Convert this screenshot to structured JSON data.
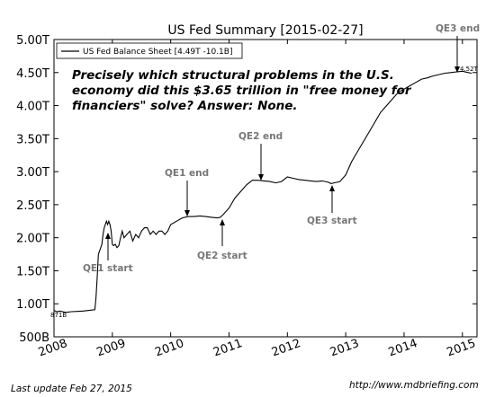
{
  "chart_data": {
    "type": "line",
    "title": "US Fed Summary  [2015-02-27]",
    "xlabel": "",
    "ylabel": "",
    "xlim": [
      2008.0,
      2015.25
    ],
    "ylim": [
      500,
      5000
    ],
    "y_ticks": [
      500,
      1000,
      1500,
      2000,
      2500,
      3000,
      3500,
      4000,
      4500,
      5000
    ],
    "y_tick_labels": [
      "500B",
      "1.00T",
      "1.50T",
      "2.00T",
      "2.50T",
      "3.00T",
      "3.50T",
      "4.00T",
      "4.50T",
      "5.00T"
    ],
    "x_ticks": [
      2008,
      2009,
      2010,
      2011,
      2012,
      2013,
      2014,
      2015
    ],
    "x_tick_labels": [
      "2008",
      "2009",
      "2010",
      "2011",
      "2012",
      "2013",
      "2014",
      "2015"
    ],
    "legend_position": "top-left",
    "series": [
      {
        "name": "US Fed Balance Sheet [4.49T -10.1B]",
        "color": "#000000",
        "x": [
          2008.0,
          2008.05,
          2008.1,
          2008.2,
          2008.3,
          2008.4,
          2008.5,
          2008.6,
          2008.7,
          2008.72,
          2008.74,
          2008.76,
          2008.78,
          2008.8,
          2008.82,
          2008.84,
          2008.86,
          2008.88,
          2008.9,
          2008.92,
          2008.94,
          2008.96,
          2008.98,
          2009.0,
          2009.02,
          2009.05,
          2009.08,
          2009.11,
          2009.14,
          2009.17,
          2009.2,
          2009.25,
          2009.3,
          2009.35,
          2009.4,
          2009.45,
          2009.5,
          2009.55,
          2009.6,
          2009.65,
          2009.7,
          2009.75,
          2009.8,
          2009.85,
          2009.9,
          2009.95,
          2010.0,
          2010.1,
          2010.2,
          2010.3,
          2010.4,
          2010.5,
          2010.6,
          2010.7,
          2010.8,
          2010.85,
          2010.9,
          2011.0,
          2011.1,
          2011.2,
          2011.3,
          2011.4,
          2011.5,
          2011.6,
          2011.7,
          2011.8,
          2011.9,
          2012.0,
          2012.1,
          2012.2,
          2012.3,
          2012.4,
          2012.5,
          2012.6,
          2012.7,
          2012.75,
          2012.8,
          2012.9,
          2013.0,
          2013.1,
          2013.2,
          2013.3,
          2013.4,
          2013.5,
          2013.6,
          2013.7,
          2013.8,
          2013.9,
          2014.0,
          2014.1,
          2014.2,
          2014.3,
          2014.4,
          2014.5,
          2014.6,
          2014.7,
          2014.8,
          2014.9,
          2015.0,
          2015.1,
          2015.16
        ],
        "values": [
          900,
          880,
          890,
          870,
          880,
          885,
          890,
          900,
          910,
          1100,
          1400,
          1750,
          1800,
          1850,
          1900,
          2050,
          2150,
          2200,
          2250,
          2200,
          2250,
          2200,
          2100,
          1900,
          1880,
          1900,
          1850,
          1880,
          2000,
          2100,
          2000,
          2050,
          2100,
          1950,
          2050,
          2000,
          2100,
          2150,
          2150,
          2050,
          2100,
          2050,
          2100,
          2100,
          2050,
          2100,
          2200,
          2250,
          2300,
          2320,
          2320,
          2330,
          2320,
          2310,
          2300,
          2310,
          2350,
          2450,
          2600,
          2700,
          2800,
          2870,
          2870,
          2860,
          2850,
          2830,
          2850,
          2920,
          2900,
          2880,
          2870,
          2860,
          2850,
          2860,
          2840,
          2820,
          2830,
          2850,
          2950,
          3150,
          3300,
          3450,
          3600,
          3750,
          3900,
          4000,
          4100,
          4200,
          4250,
          4300,
          4350,
          4400,
          4420,
          4450,
          4470,
          4490,
          4500,
          4510,
          4520,
          4500,
          4490
        ]
      }
    ],
    "annotations": [
      {
        "text": "QE1 start",
        "x": 2008.92,
        "y": 2050
      },
      {
        "text": "QE1 end",
        "x": 2010.25,
        "y": 2300
      },
      {
        "text": "QE2 start",
        "x": 2010.85,
        "y": 2300
      },
      {
        "text": "QE2 end",
        "x": 2011.5,
        "y": 2870
      },
      {
        "text": "QE3 start",
        "x": 2012.75,
        "y": 2820
      },
      {
        "text": "QE3 end",
        "x": 2014.85,
        "y": 4500
      }
    ],
    "data_labels": [
      {
        "text": "871B",
        "x": 2008.0,
        "y": 871
      },
      {
        "text": "4.52T",
        "x": 2014.85,
        "y": 4520
      }
    ]
  },
  "headline": {
    "line1": "Precisely which structural problems in the U.S.",
    "line2": "economy did this $3.65 trillion in \"free money for",
    "line3": "financiers\" solve? Answer: None."
  },
  "footer": {
    "left": "Last update Feb 27, 2015",
    "right": "http://www.mdbriefing.com"
  }
}
